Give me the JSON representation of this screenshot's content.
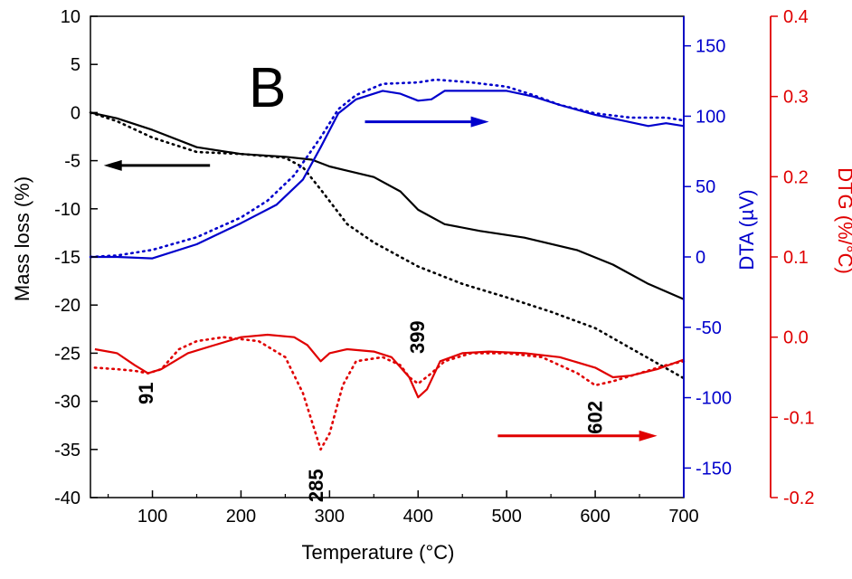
{
  "chart_data": {
    "type": "line",
    "panel_label": "B",
    "x_axis": {
      "label": "Temperature (°C)",
      "range": [
        30,
        700
      ],
      "ticks": [
        100,
        200,
        300,
        400,
        500,
        600,
        700
      ],
      "color": "#000000"
    },
    "left_axis": {
      "label": "Mass loss (%)",
      "range": [
        -40,
        10
      ],
      "ticks": [
        -40,
        -35,
        -30,
        -25,
        -20,
        -15,
        -10,
        -5,
        0,
        5,
        10
      ],
      "color": "#000000"
    },
    "mid_axis": {
      "label": "DTA (µV)",
      "range": [
        -171,
        171
      ],
      "ticks": [
        -150,
        -100,
        -50,
        0,
        50,
        100,
        150
      ],
      "color": "#0000cc"
    },
    "right_axis": {
      "label": "DTG (%/°C)",
      "range": [
        -0.2,
        0.4
      ],
      "ticks": [
        "-0.2",
        "-0.1",
        "0.0",
        "0.1",
        "0.2",
        "0.3",
        "0.4"
      ],
      "color": "#e00000"
    },
    "series": [
      {
        "axis": "left",
        "color": "#000000",
        "dash": false,
        "points": [
          [
            30,
            0
          ],
          [
            60,
            -0.6
          ],
          [
            100,
            -1.8
          ],
          [
            150,
            -3.6
          ],
          [
            200,
            -4.3
          ],
          [
            250,
            -4.6
          ],
          [
            280,
            -4.9
          ],
          [
            300,
            -5.6
          ],
          [
            350,
            -6.7
          ],
          [
            380,
            -8.2
          ],
          [
            400,
            -10.1
          ],
          [
            430,
            -11.6
          ],
          [
            470,
            -12.3
          ],
          [
            520,
            -13.0
          ],
          [
            580,
            -14.3
          ],
          [
            620,
            -15.8
          ],
          [
            660,
            -17.8
          ],
          [
            700,
            -19.4
          ]
        ]
      },
      {
        "axis": "left",
        "color": "#000000",
        "dash": true,
        "points": [
          [
            30,
            0
          ],
          [
            60,
            -0.9
          ],
          [
            100,
            -2.6
          ],
          [
            150,
            -4.1
          ],
          [
            200,
            -4.3
          ],
          [
            250,
            -4.7
          ],
          [
            270,
            -5.7
          ],
          [
            290,
            -8.0
          ],
          [
            320,
            -11.6
          ],
          [
            350,
            -13.5
          ],
          [
            400,
            -16.0
          ],
          [
            450,
            -17.8
          ],
          [
            500,
            -19.2
          ],
          [
            550,
            -20.7
          ],
          [
            600,
            -22.4
          ],
          [
            650,
            -25.0
          ],
          [
            700,
            -27.6
          ]
        ]
      },
      {
        "axis": "mid",
        "color": "#0000cc",
        "dash": false,
        "points": [
          [
            30,
            0
          ],
          [
            60,
            0
          ],
          [
            100,
            -1
          ],
          [
            150,
            9
          ],
          [
            200,
            24
          ],
          [
            240,
            37
          ],
          [
            270,
            55
          ],
          [
            290,
            78
          ],
          [
            310,
            102
          ],
          [
            330,
            112
          ],
          [
            360,
            118
          ],
          [
            380,
            116
          ],
          [
            400,
            111
          ],
          [
            415,
            112
          ],
          [
            430,
            118
          ],
          [
            460,
            118
          ],
          [
            500,
            118
          ],
          [
            530,
            114
          ],
          [
            560,
            108
          ],
          [
            600,
            101
          ],
          [
            630,
            97
          ],
          [
            660,
            93
          ],
          [
            680,
            95
          ],
          [
            700,
            93
          ]
        ]
      },
      {
        "axis": "mid",
        "color": "#0000cc",
        "dash": true,
        "points": [
          [
            30,
            0
          ],
          [
            60,
            1
          ],
          [
            100,
            5
          ],
          [
            150,
            14
          ],
          [
            200,
            28
          ],
          [
            230,
            40
          ],
          [
            260,
            58
          ],
          [
            290,
            85
          ],
          [
            310,
            105
          ],
          [
            330,
            115
          ],
          [
            360,
            123
          ],
          [
            400,
            124
          ],
          [
            420,
            126
          ],
          [
            460,
            124
          ],
          [
            500,
            121
          ],
          [
            530,
            115
          ],
          [
            560,
            108
          ],
          [
            600,
            102
          ],
          [
            640,
            99
          ],
          [
            680,
            99
          ],
          [
            700,
            97
          ]
        ]
      },
      {
        "axis": "right",
        "color": "#e00000",
        "dash": false,
        "points": [
          [
            35,
            -0.015
          ],
          [
            60,
            -0.02
          ],
          [
            80,
            -0.035
          ],
          [
            95,
            -0.045
          ],
          [
            110,
            -0.04
          ],
          [
            140,
            -0.02
          ],
          [
            170,
            -0.01
          ],
          [
            200,
            0.0
          ],
          [
            230,
            0.003
          ],
          [
            260,
            0.0
          ],
          [
            275,
            -0.01
          ],
          [
            290,
            -0.03
          ],
          [
            300,
            -0.02
          ],
          [
            320,
            -0.015
          ],
          [
            350,
            -0.018
          ],
          [
            370,
            -0.025
          ],
          [
            390,
            -0.05
          ],
          [
            400,
            -0.075
          ],
          [
            410,
            -0.065
          ],
          [
            425,
            -0.03
          ],
          [
            450,
            -0.02
          ],
          [
            480,
            -0.018
          ],
          [
            520,
            -0.02
          ],
          [
            560,
            -0.025
          ],
          [
            600,
            -0.038
          ],
          [
            620,
            -0.05
          ],
          [
            640,
            -0.048
          ],
          [
            670,
            -0.04
          ],
          [
            700,
            -0.028
          ]
        ]
      },
      {
        "axis": "right",
        "color": "#e00000",
        "dash": true,
        "points": [
          [
            35,
            -0.038
          ],
          [
            60,
            -0.04
          ],
          [
            80,
            -0.042
          ],
          [
            95,
            -0.045
          ],
          [
            110,
            -0.04
          ],
          [
            130,
            -0.015
          ],
          [
            150,
            -0.005
          ],
          [
            180,
            0.0
          ],
          [
            220,
            -0.005
          ],
          [
            250,
            -0.025
          ],
          [
            270,
            -0.07
          ],
          [
            290,
            -0.14
          ],
          [
            300,
            -0.12
          ],
          [
            315,
            -0.06
          ],
          [
            330,
            -0.03
          ],
          [
            360,
            -0.025
          ],
          [
            380,
            -0.035
          ],
          [
            390,
            -0.05
          ],
          [
            400,
            -0.058
          ],
          [
            415,
            -0.045
          ],
          [
            430,
            -0.03
          ],
          [
            460,
            -0.02
          ],
          [
            500,
            -0.02
          ],
          [
            540,
            -0.025
          ],
          [
            580,
            -0.045
          ],
          [
            600,
            -0.06
          ],
          [
            620,
            -0.055
          ],
          [
            650,
            -0.045
          ],
          [
            680,
            -0.035
          ],
          [
            700,
            -0.03
          ]
        ]
      }
    ],
    "annotations": [
      {
        "text": "91",
        "x": 93,
        "axis": "right",
        "y": -0.07,
        "rotate": -90
      },
      {
        "text": "285",
        "x": 285,
        "axis": "right",
        "y": -0.185,
        "rotate": -90
      },
      {
        "text": "399",
        "x": 399,
        "axis": "right",
        "y": 0.0,
        "rotate": -90
      },
      {
        "text": "602",
        "x": 600,
        "axis": "right",
        "y": -0.1,
        "rotate": -90
      }
    ],
    "arrows": [
      {
        "color": "#000000",
        "direction": "left",
        "axis": "left",
        "x_from": 165,
        "x_to": 45,
        "y": -5.5
      },
      {
        "color": "#0000cc",
        "direction": "right",
        "axis": "mid",
        "x_from": 340,
        "x_to": 480,
        "y": 96
      },
      {
        "color": "#e00000",
        "direction": "right",
        "axis": "right",
        "x_from": 490,
        "x_to": 670,
        "y": -0.123
      }
    ]
  }
}
